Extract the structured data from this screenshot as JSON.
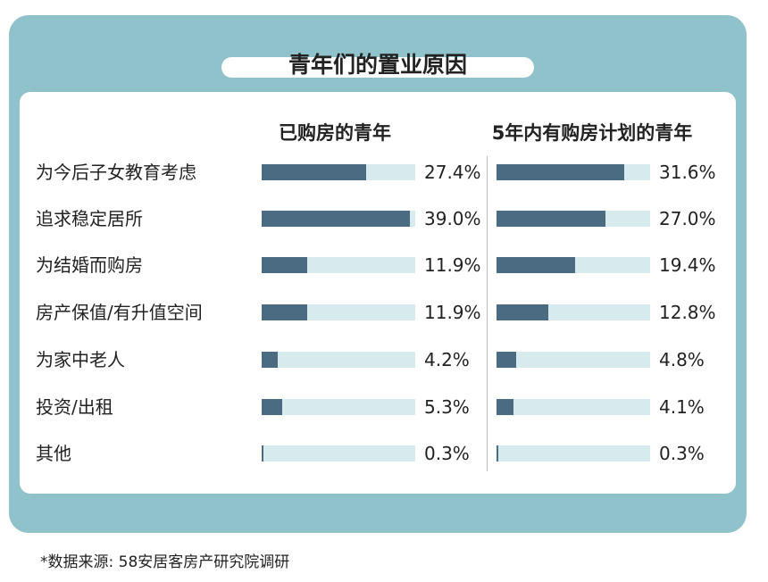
{
  "chart_data": {
    "type": "bar",
    "title": "青年们的置业原因",
    "categories": [
      "为今后子女教育考虑",
      "追求稳定居所",
      "为结婚而购房",
      "房产保值/有升值空间",
      "为家中老人",
      "投资/出租",
      "其他"
    ],
    "series": [
      {
        "name": "已购房的青年",
        "values": [
          27.4,
          39.0,
          11.9,
          11.9,
          4.2,
          5.3,
          0.3
        ],
        "labels": [
          "27.4%",
          "39.0%",
          "11.9%",
          "11.9%",
          "4.2%",
          "5.3%",
          "0.3%"
        ],
        "xlim": [
          0,
          40.4
        ]
      },
      {
        "name": "5年内有购房计划的青年",
        "values": [
          31.6,
          27.0,
          19.4,
          12.8,
          4.8,
          4.1,
          0.3
        ],
        "labels": [
          "31.6%",
          "27.0%",
          "19.4%",
          "12.8%",
          "4.8%",
          "4.1%",
          "0.3%"
        ],
        "xlim": [
          0,
          38
        ]
      }
    ],
    "colors": {
      "fill": "#4a6b82",
      "track": "#d7ebef",
      "frame": "#8fc2ca"
    }
  },
  "source": "*数据来源: 58安居客房产研究院调研"
}
